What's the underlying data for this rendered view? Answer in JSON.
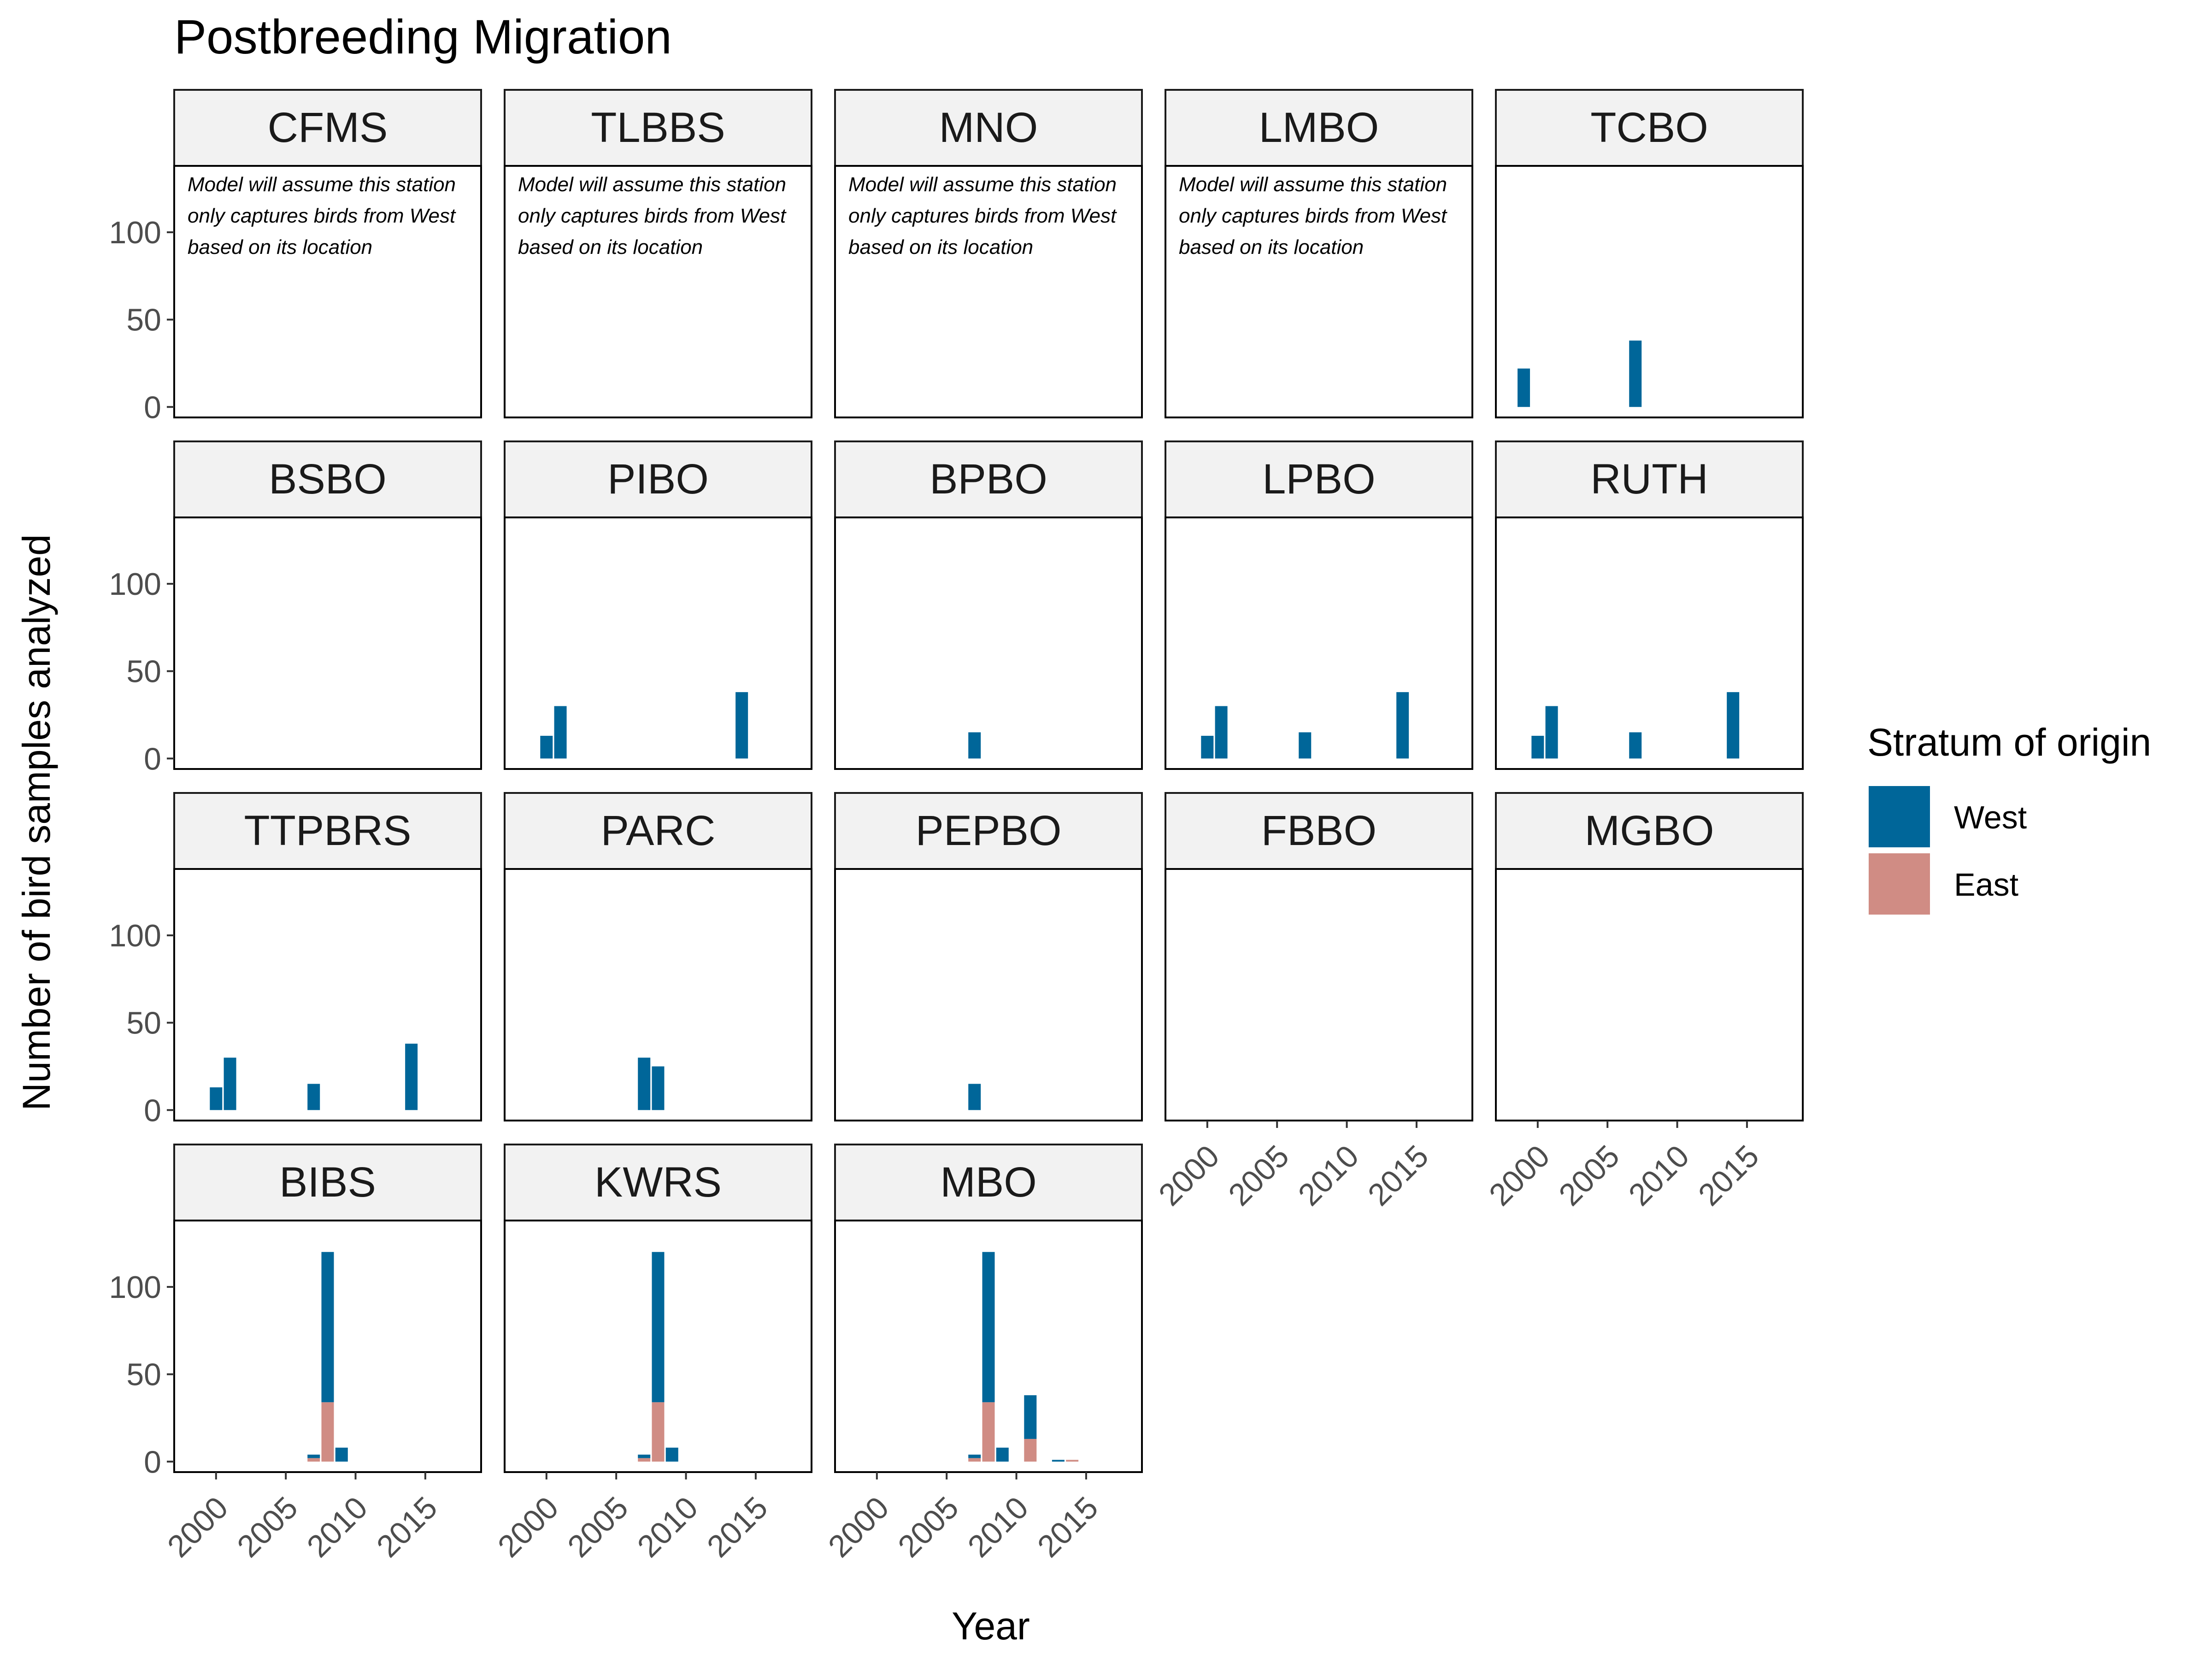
{
  "chart_data": {
    "type": "bar",
    "title": "Postbreeding Migration",
    "xlabel": "Year",
    "ylabel": "Number of bird samples analyzed",
    "xlim": [
      1997,
      2019
    ],
    "ylim": [
      -6,
      138
    ],
    "yticks": [
      0,
      50,
      100
    ],
    "xticks": [
      2000,
      2005,
      2010,
      2015
    ],
    "ytick_labels": [
      "0",
      "50",
      "100"
    ],
    "xtick_labels": [
      "2000",
      "2005",
      "2010",
      "2015"
    ],
    "legend": {
      "title": "Stratum of origin",
      "placement": "right",
      "entries": [
        {
          "name": "West",
          "color": "#006699"
        },
        {
          "name": "East",
          "color": "#D08C84"
        }
      ]
    },
    "colors": {
      "West": "#006699",
      "East": "#D08C84",
      "strip_fill": "#F2F2F2"
    },
    "note_lines": [
      "Model will assume this station",
      "only captures birds from West",
      "based on its location"
    ],
    "panels": [
      {
        "name": "CFMS",
        "note": true,
        "bars": []
      },
      {
        "name": "TLBBS",
        "note": true,
        "bars": []
      },
      {
        "name": "MNO",
        "note": true,
        "bars": []
      },
      {
        "name": "LMBO",
        "note": true,
        "bars": []
      },
      {
        "name": "TCBO",
        "bars": [
          {
            "year": 1999,
            "west": 22,
            "east": 0
          },
          {
            "year": 2007,
            "west": 38,
            "east": 0
          }
        ]
      },
      {
        "name": "BSBO",
        "bars": []
      },
      {
        "name": "PIBO",
        "bars": [
          {
            "year": 2000,
            "west": 13,
            "east": 0
          },
          {
            "year": 2001,
            "west": 30,
            "east": 0
          },
          {
            "year": 2014,
            "west": 38,
            "east": 0
          }
        ]
      },
      {
        "name": "BPBO",
        "bars": [
          {
            "year": 2007,
            "west": 15,
            "east": 0
          }
        ]
      },
      {
        "name": "LPBO",
        "bars": [
          {
            "year": 2000,
            "west": 13,
            "east": 0
          },
          {
            "year": 2001,
            "west": 30,
            "east": 0
          },
          {
            "year": 2007,
            "west": 15,
            "east": 0
          },
          {
            "year": 2014,
            "west": 38,
            "east": 0
          }
        ]
      },
      {
        "name": "RUTH",
        "bars": [
          {
            "year": 2000,
            "west": 13,
            "east": 0
          },
          {
            "year": 2001,
            "west": 30,
            "east": 0
          },
          {
            "year": 2007,
            "west": 15,
            "east": 0
          },
          {
            "year": 2014,
            "west": 38,
            "east": 0
          }
        ]
      },
      {
        "name": "TTPBRS",
        "bars": [
          {
            "year": 2000,
            "west": 13,
            "east": 0
          },
          {
            "year": 2001,
            "west": 30,
            "east": 0
          },
          {
            "year": 2007,
            "west": 15,
            "east": 0
          },
          {
            "year": 2014,
            "west": 38,
            "east": 0
          }
        ]
      },
      {
        "name": "PARC",
        "bars": [
          {
            "year": 2007,
            "west": 30,
            "east": 0
          },
          {
            "year": 2008,
            "west": 25,
            "east": 0
          }
        ]
      },
      {
        "name": "PEPBO",
        "bars": [
          {
            "year": 2007,
            "west": 15,
            "east": 0
          }
        ]
      },
      {
        "name": "FBBO",
        "bars": []
      },
      {
        "name": "MGBO",
        "bars": []
      },
      {
        "name": "BIBS",
        "bars": [
          {
            "year": 2007,
            "west": 2,
            "east": 2
          },
          {
            "year": 2008,
            "west": 86,
            "east": 34
          },
          {
            "year": 2009,
            "west": 8,
            "east": 0
          }
        ]
      },
      {
        "name": "KWRS",
        "bars": [
          {
            "year": 2007,
            "west": 2,
            "east": 2
          },
          {
            "year": 2008,
            "west": 86,
            "east": 34
          },
          {
            "year": 2009,
            "west": 8,
            "east": 0
          }
        ]
      },
      {
        "name": "MBO",
        "bars": [
          {
            "year": 2007,
            "west": 2,
            "east": 2
          },
          {
            "year": 2008,
            "west": 86,
            "east": 34
          },
          {
            "year": 2009,
            "west": 8,
            "east": 0
          },
          {
            "year": 2011,
            "west": 25,
            "east": 13
          },
          {
            "year": 2013,
            "west": 1,
            "east": 0
          },
          {
            "year": 2014,
            "west": 0,
            "east": 1
          }
        ]
      }
    ]
  }
}
